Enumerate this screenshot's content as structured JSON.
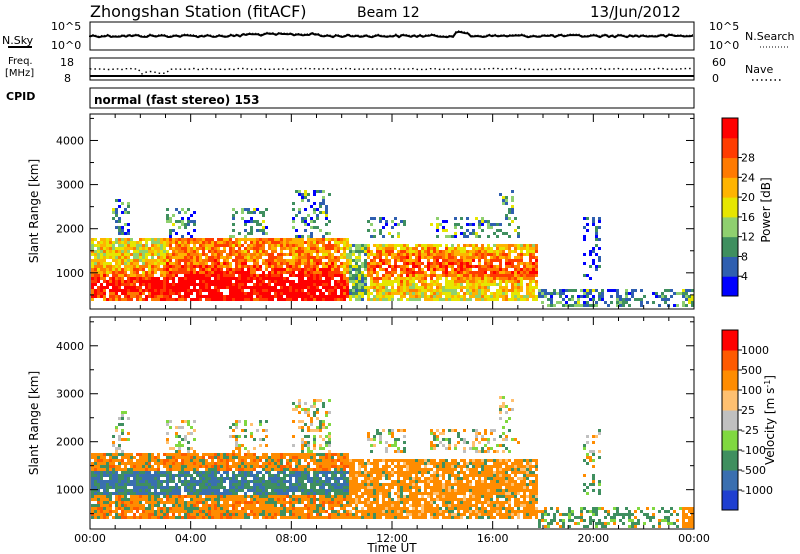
{
  "header": {
    "station": "Zhongshan Station (fitACF)",
    "beam": "Beam 12",
    "date": "13/Jun/2012"
  },
  "noise_panel": {
    "left_label": "N.Sky",
    "right_label": "N.Search",
    "left_ticks": [
      "10^5",
      "10^0"
    ],
    "right_ticks": [
      "10^5",
      "10^0"
    ]
  },
  "freq_panel": {
    "left_label_1": "Freq.",
    "left_label_2": "[MHz]",
    "right_label": "Nave",
    "left_ticks": [
      "18",
      "8"
    ],
    "right_ticks": [
      "60",
      "0"
    ]
  },
  "cpid": {
    "label": "CPID",
    "value": "normal (fast stereo) 153"
  },
  "colors": {
    "power_scale": [
      "#0000ff",
      "#2f5fb0",
      "#3f8f5f",
      "#8fd06f",
      "#e6e600",
      "#ffb400",
      "#ff7a00",
      "#ff3c00",
      "#ff0000"
    ],
    "velocity_scale": [
      "#ff0000",
      "#ff5a00",
      "#ff8c00",
      "#ffc070",
      "#c0c0c0",
      "#80d840",
      "#3f8f5f",
      "#3a6fb0",
      "#1f3fd0"
    ]
  },
  "chart_data": [
    {
      "type": "heatmap",
      "xlabel": "Time UT",
      "ylabel": "Slant Range [km]",
      "x_ticks": [
        "00:00",
        "04:00",
        "08:00",
        "12:00",
        "16:00",
        "20:00",
        "00:00"
      ],
      "y_ticks": [
        "1000",
        "2000",
        "3000",
        "4000"
      ],
      "xlim_hours": [
        0,
        24
      ],
      "ylim_km": [
        180,
        4600
      ],
      "colorbar": {
        "label": "Power [dB]",
        "ticks": [
          "4",
          "8",
          "12",
          "16",
          "20",
          "24",
          "28"
        ],
        "range": [
          0,
          30
        ]
      }
    },
    {
      "type": "heatmap",
      "xlabel": "Time UT",
      "ylabel": "Slant Range [km]",
      "x_ticks": [
        "00:00",
        "04:00",
        "08:00",
        "12:00",
        "16:00",
        "20:00",
        "00:00"
      ],
      "y_ticks": [
        "1000",
        "2000",
        "3000",
        "4000"
      ],
      "xlim_hours": [
        0,
        24
      ],
      "ylim_km": [
        180,
        4600
      ],
      "colorbar": {
        "label": "Velocity [m s-1]",
        "ticks": [
          "1000",
          "500",
          "100",
          "25",
          "-25",
          "-100",
          "-500",
          "-1000"
        ]
      }
    }
  ]
}
